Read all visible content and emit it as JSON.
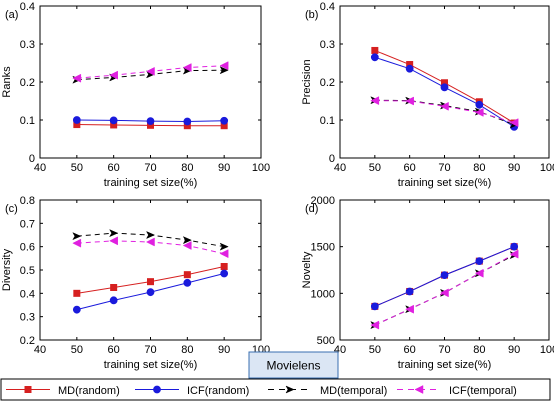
{
  "dataset_label": "Movielens",
  "legend": [
    {
      "label": "MD(random)",
      "color": "#d62020",
      "dash": "solid",
      "marker": "square"
    },
    {
      "label": "ICF(random)",
      "color": "#1a1adc",
      "dash": "solid",
      "marker": "circle"
    },
    {
      "label": "MD(temporal)",
      "color": "#000000",
      "dash": "dashed",
      "marker": "arrow-right"
    },
    {
      "label": "ICF(temporal)",
      "color": "#e020e0",
      "dash": "dashed",
      "marker": "arrow-left"
    }
  ],
  "chart_data": [
    {
      "type": "line",
      "panel": "(a)",
      "xlabel": "training set size(%)",
      "ylabel": "Ranks",
      "xlim": [
        40,
        100
      ],
      "ylim": [
        0,
        0.4
      ],
      "xticks": [
        40,
        50,
        60,
        70,
        80,
        90,
        100
      ],
      "yticks": [
        0,
        0.1,
        0.2,
        0.3,
        0.4
      ],
      "x": [
        50,
        60,
        70,
        80,
        90
      ],
      "series": [
        {
          "name": "MD(random)",
          "values": [
            0.088,
            0.087,
            0.086,
            0.085,
            0.085
          ]
        },
        {
          "name": "ICF(random)",
          "values": [
            0.1,
            0.099,
            0.097,
            0.096,
            0.098
          ]
        },
        {
          "name": "MD(temporal)",
          "values": [
            0.206,
            0.212,
            0.22,
            0.23,
            0.231
          ]
        },
        {
          "name": "ICF(temporal)",
          "values": [
            0.21,
            0.218,
            0.228,
            0.238,
            0.243
          ]
        }
      ]
    },
    {
      "type": "line",
      "panel": "(b)",
      "xlabel": "training set size(%)",
      "ylabel": "Precision",
      "xlim": [
        40,
        100
      ],
      "ylim": [
        0,
        0.4
      ],
      "xticks": [
        40,
        50,
        60,
        70,
        80,
        90,
        100
      ],
      "yticks": [
        0,
        0.1,
        0.2,
        0.3,
        0.4
      ],
      "x": [
        50,
        60,
        70,
        80,
        90
      ],
      "series": [
        {
          "name": "MD(random)",
          "values": [
            0.283,
            0.246,
            0.198,
            0.148,
            0.092
          ]
        },
        {
          "name": "ICF(random)",
          "values": [
            0.265,
            0.235,
            0.186,
            0.14,
            0.082
          ]
        },
        {
          "name": "MD(temporal)",
          "values": [
            0.152,
            0.151,
            0.138,
            0.122,
            0.088
          ]
        },
        {
          "name": "ICF(temporal)",
          "values": [
            0.151,
            0.15,
            0.136,
            0.12,
            0.093
          ]
        }
      ]
    },
    {
      "type": "line",
      "panel": "(c)",
      "xlabel": "training set size(%)",
      "ylabel": "Diversity",
      "xlim": [
        40,
        100
      ],
      "ylim": [
        0.2,
        0.8
      ],
      "xticks": [
        40,
        50,
        60,
        70,
        80,
        90,
        100
      ],
      "yticks": [
        0.2,
        0.3,
        0.4,
        0.5,
        0.6,
        0.7,
        0.8
      ],
      "x": [
        50,
        60,
        70,
        80,
        90
      ],
      "series": [
        {
          "name": "MD(random)",
          "values": [
            0.4,
            0.425,
            0.45,
            0.48,
            0.515
          ]
        },
        {
          "name": "ICF(random)",
          "values": [
            0.33,
            0.37,
            0.405,
            0.445,
            0.485
          ]
        },
        {
          "name": "MD(temporal)",
          "values": [
            0.645,
            0.658,
            0.65,
            0.628,
            0.6
          ]
        },
        {
          "name": "ICF(temporal)",
          "values": [
            0.615,
            0.625,
            0.62,
            0.605,
            0.57
          ]
        }
      ]
    },
    {
      "type": "line",
      "panel": "(d)",
      "xlabel": "training set size(%)",
      "ylabel": "Novelty",
      "xlim": [
        40,
        100
      ],
      "ylim": [
        500,
        2000
      ],
      "xticks": [
        40,
        50,
        60,
        70,
        80,
        90,
        100
      ],
      "yticks": [
        500,
        1000,
        1500,
        2000
      ],
      "x": [
        50,
        60,
        70,
        80,
        90
      ],
      "series": [
        {
          "name": "MD(random)",
          "values": [
            860,
            1020,
            1195,
            1345,
            1500
          ]
        },
        {
          "name": "ICF(random)",
          "values": [
            860,
            1020,
            1195,
            1345,
            1500
          ]
        },
        {
          "name": "MD(temporal)",
          "values": [
            660,
            830,
            1005,
            1215,
            1410
          ]
        },
        {
          "name": "ICF(temporal)",
          "values": [
            660,
            830,
            1005,
            1215,
            1420
          ]
        }
      ]
    }
  ]
}
